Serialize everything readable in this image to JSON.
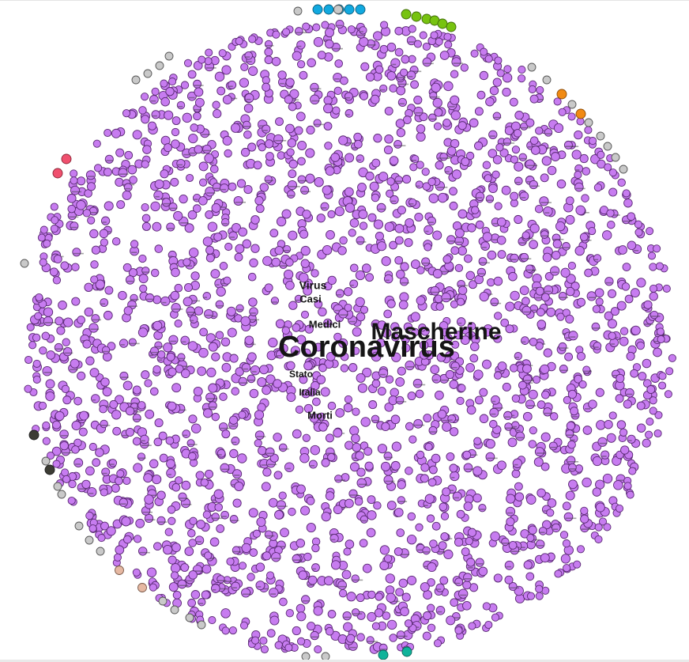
{
  "graph": {
    "labels": [
      {
        "id": "coronavirus",
        "text": "Coronavirus",
        "weight": 38
      },
      {
        "id": "mascherine",
        "text": "Mascherine",
        "weight": 30
      },
      {
        "id": "virus",
        "text": "Virus",
        "weight": 14
      },
      {
        "id": "casi",
        "text": "Casi",
        "weight": 13
      },
      {
        "id": "medici",
        "text": "Medici",
        "weight": 13
      },
      {
        "id": "morti",
        "text": "Morti",
        "weight": 13
      },
      {
        "id": "stato",
        "text": "Stato",
        "weight": 12
      },
      {
        "id": "italia",
        "text": "Italia",
        "weight": 12
      }
    ],
    "communities": [
      {
        "name": "main",
        "fill": "#c77cf0",
        "stroke": "#5a2a73"
      },
      {
        "name": "blue",
        "fill": "#11a9e0",
        "stroke": "#0b5e7d"
      },
      {
        "name": "green",
        "fill": "#77c310",
        "stroke": "#3e6a06"
      },
      {
        "name": "orange",
        "fill": "#f18a12",
        "stroke": "#8a4a06"
      },
      {
        "name": "red",
        "fill": "#f0506e",
        "stroke": "#8a2436"
      },
      {
        "name": "teal",
        "fill": "#10b39a",
        "stroke": "#0a6356"
      },
      {
        "name": "gray",
        "fill": "#c9c9c9",
        "stroke": "#555555"
      },
      {
        "name": "dark",
        "fill": "#3c3c34",
        "stroke": "#1c1c1c"
      },
      {
        "name": "tan",
        "fill": "#e6b8a2",
        "stroke": "#7a5a4a"
      }
    ]
  }
}
